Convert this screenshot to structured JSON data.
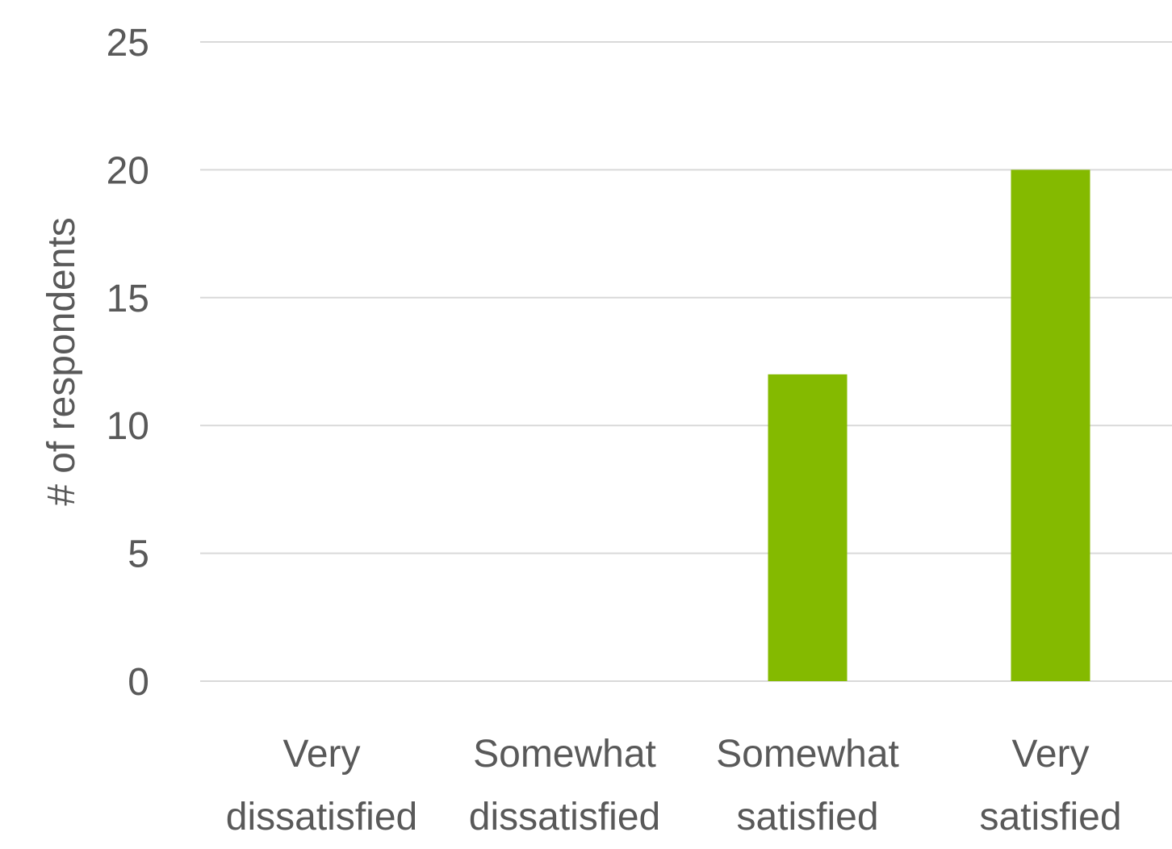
{
  "chart_data": {
    "type": "bar",
    "title": "",
    "xlabel": "",
    "ylabel": "# of respondents",
    "categories": [
      [
        "Very",
        "dissatisfied"
      ],
      [
        "Somewhat",
        "dissatisfied"
      ],
      [
        "Somewhat",
        "satisfied"
      ],
      [
        "Very",
        "satisfied"
      ]
    ],
    "values": [
      0,
      0,
      12,
      20
    ],
    "ylim": [
      0,
      25
    ],
    "yticks": [
      "0",
      "5",
      "10",
      "15",
      "20",
      "25"
    ],
    "grid": true,
    "legend": "none",
    "colors": {
      "bar": "#84BA00",
      "grid": "#d9d9d9",
      "text": "#595959"
    }
  }
}
